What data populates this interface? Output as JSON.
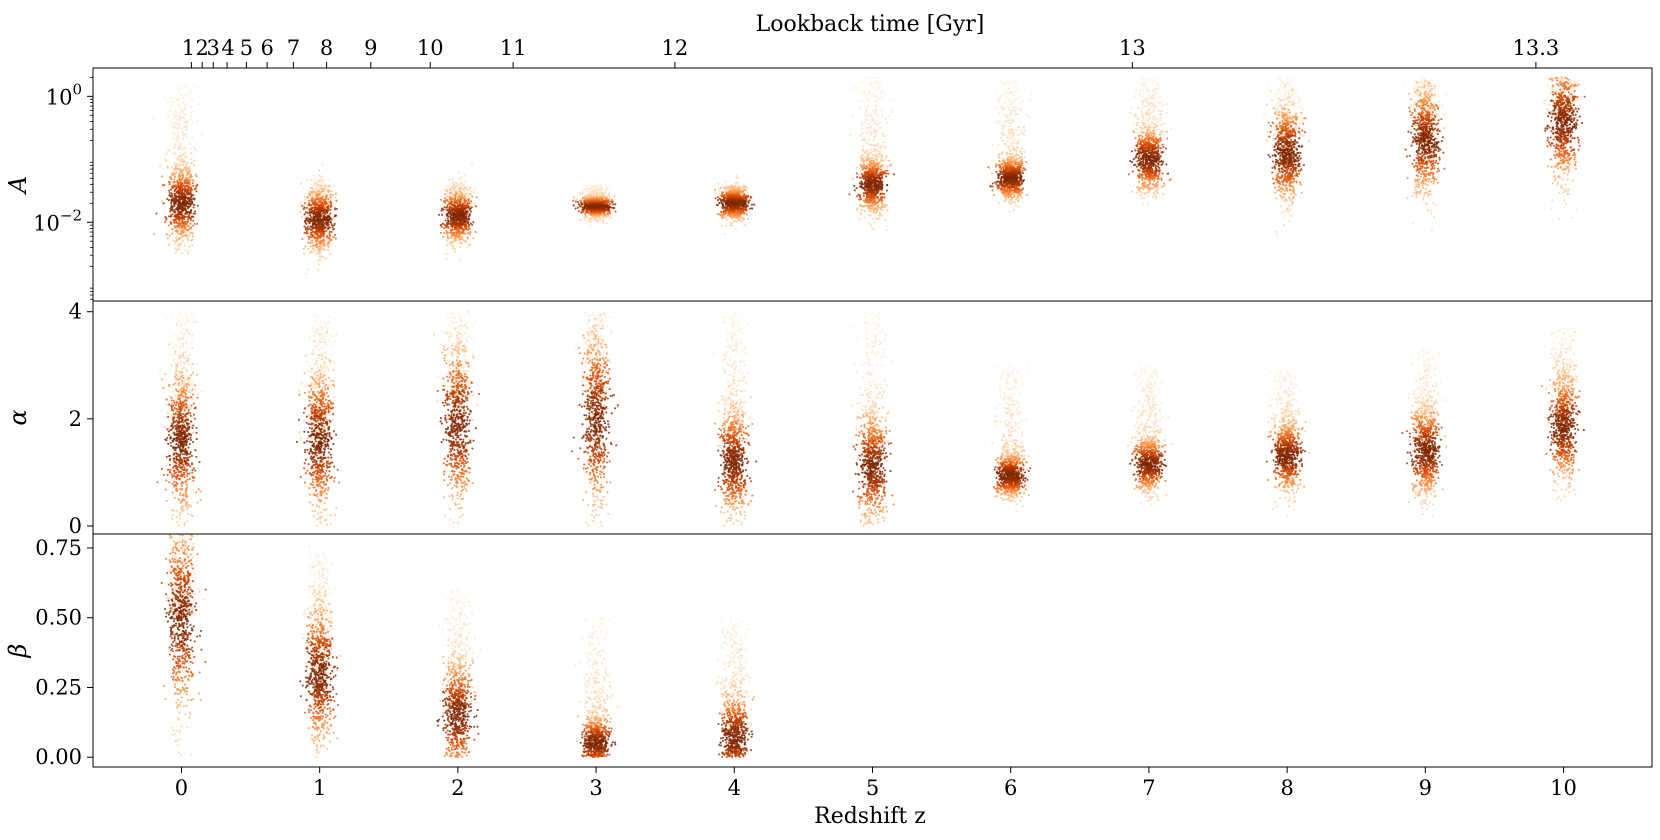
{
  "chart_data": {
    "type": "scatter",
    "description_of_marks": "posterior sample clouds per redshift, colored by density (Oranges colormap)",
    "x": {
      "label": "Redshift z",
      "ticks": [
        0,
        1,
        2,
        3,
        4,
        5,
        6,
        7,
        8,
        9,
        10
      ],
      "tick_labels": [
        "0",
        "1",
        "2",
        "3",
        "4",
        "5",
        "6",
        "7",
        "8",
        "9",
        "10"
      ],
      "range": [
        -0.64,
        10.64
      ]
    },
    "top_axis": {
      "label": "Lookback time [Gyr]",
      "ticks": [
        {
          "label": "1",
          "z": 0.072
        },
        {
          "label": "2",
          "z": 0.15
        },
        {
          "label": "3",
          "z": 0.23
        },
        {
          "label": "4",
          "z": 0.33
        },
        {
          "label": "5",
          "z": 0.47
        },
        {
          "label": "6",
          "z": 0.62
        },
        {
          "label": "7",
          "z": 0.81
        },
        {
          "label": "8",
          "z": 1.05
        },
        {
          "label": "9",
          "z": 1.37
        },
        {
          "label": "10",
          "z": 1.8
        },
        {
          "label": "11",
          "z": 2.4
        },
        {
          "label": "12",
          "z": 3.57
        },
        {
          "label": "13",
          "z": 6.88
        },
        {
          "label": "13.3",
          "z": 9.8
        }
      ]
    },
    "panels": [
      {
        "ylabel": "A",
        "scale": "log",
        "ylim_log10": [
          -3.25,
          0.45
        ],
        "yticks": [
          {
            "log10": 0,
            "base": "10",
            "exp": "0"
          },
          {
            "log10": -2,
            "base": "10",
            "exp": "−2"
          }
        ],
        "clip_top_log10": 0.3,
        "series": [
          {
            "z": 0,
            "center_log10": -1.7,
            "spread_log10": 0.35,
            "halo_top_log10": 0.2
          },
          {
            "z": 1,
            "center_log10": -1.95,
            "spread_log10": 0.3,
            "halo_top_log10": -1.3
          },
          {
            "z": 2,
            "center_log10": -1.9,
            "spread_log10": 0.25,
            "halo_top_log10": -1.4
          },
          {
            "z": 3,
            "center_log10": -1.75,
            "spread_log10": 0.1,
            "halo_top_log10": -1.4
          },
          {
            "z": 4,
            "center_log10": -1.7,
            "spread_log10": 0.15,
            "halo_top_log10": -1.4
          },
          {
            "z": 5,
            "center_log10": -1.4,
            "spread_log10": 0.25,
            "halo_top_log10": 0.3
          },
          {
            "z": 6,
            "center_log10": -1.3,
            "spread_log10": 0.2,
            "halo_top_log10": 0.3
          },
          {
            "z": 7,
            "center_log10": -1.0,
            "spread_log10": 0.3,
            "halo_top_log10": 0.3
          },
          {
            "z": 8,
            "center_log10": -0.9,
            "spread_log10": 0.45,
            "halo_top_log10": 0.3
          },
          {
            "z": 9,
            "center_log10": -0.7,
            "spread_log10": 0.5,
            "halo_top_log10": 0.3
          },
          {
            "z": 10,
            "center_log10": -0.4,
            "spread_log10": 0.55,
            "halo_top_log10": 0.3
          }
        ]
      },
      {
        "ylabel": "α",
        "scale": "linear",
        "ylim": [
          -0.15,
          4.2
        ],
        "yticks": [
          0,
          2,
          4
        ],
        "clip": [
          0,
          4
        ],
        "series": [
          {
            "z": 0,
            "center": 1.6,
            "spread": 0.8,
            "halo_top": 4.0
          },
          {
            "z": 1,
            "center": 1.6,
            "spread": 0.8,
            "halo_top": 4.0
          },
          {
            "z": 2,
            "center": 1.9,
            "spread": 0.9,
            "halo_top": 4.0
          },
          {
            "z": 3,
            "center": 2.0,
            "spread": 1.0,
            "halo_top": 4.0
          },
          {
            "z": 4,
            "center": 1.2,
            "spread": 0.6,
            "halo_top": 4.0
          },
          {
            "z": 5,
            "center": 1.1,
            "spread": 0.6,
            "halo_top": 4.0
          },
          {
            "z": 6,
            "center": 0.95,
            "spread": 0.25,
            "halo_top": 3.0
          },
          {
            "z": 7,
            "center": 1.15,
            "spread": 0.3,
            "halo_top": 3.0
          },
          {
            "z": 8,
            "center": 1.3,
            "spread": 0.4,
            "halo_top": 2.9
          },
          {
            "z": 9,
            "center": 1.4,
            "spread": 0.5,
            "halo_top": 3.3
          },
          {
            "z": 10,
            "center": 1.85,
            "spread": 0.6,
            "halo_top": 3.7
          }
        ]
      },
      {
        "ylabel": "β",
        "scale": "linear",
        "ylim": [
          -0.035,
          0.8
        ],
        "yticks": [
          0.0,
          0.25,
          0.5,
          0.75
        ],
        "ytick_labels": [
          "0.00",
          "0.25",
          "0.50",
          "0.75"
        ],
        "clip": [
          0,
          0.8
        ],
        "series": [
          {
            "z": 0,
            "center": 0.5,
            "spread": 0.2,
            "halo_top": 0.8
          },
          {
            "z": 1,
            "center": 0.3,
            "spread": 0.15,
            "halo_top": 0.75
          },
          {
            "z": 2,
            "center": 0.15,
            "spread": 0.12,
            "halo_top": 0.6
          },
          {
            "z": 3,
            "center": 0.05,
            "spread": 0.06,
            "halo_top": 0.5
          },
          {
            "z": 4,
            "center": 0.07,
            "spread": 0.1,
            "halo_top": 0.5
          }
        ]
      }
    ],
    "colormap": [
      "#fff5eb",
      "#fdd0a2",
      "#fd8d3c",
      "#d94801",
      "#7f2704"
    ]
  }
}
